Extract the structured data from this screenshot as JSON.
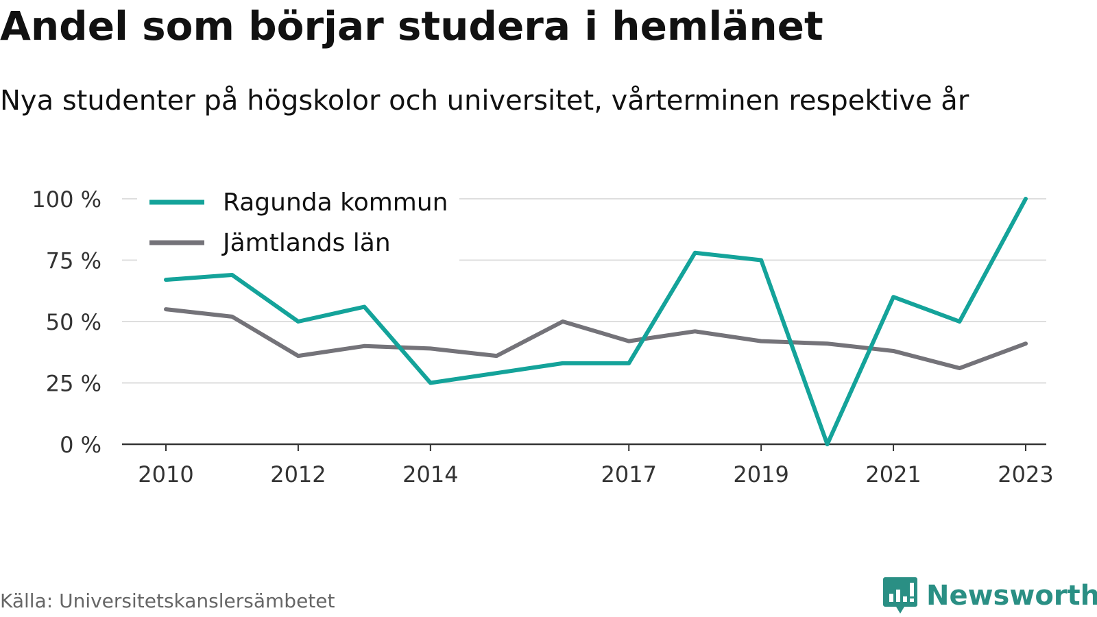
{
  "header": {
    "title": "Andel som börjar studera i hemlänet",
    "subtitle": "Nya studenter på högskolor och universitet, vårterminen respektive år"
  },
  "footer": {
    "source": "Källa: Universitetskanslersämbetet",
    "brand": "Newsworthy",
    "brand_icon": "newsworthy-logo-icon"
  },
  "chart_data": {
    "type": "line",
    "x": [
      2010,
      2011,
      2012,
      2013,
      2014,
      2015,
      2016,
      2017,
      2018,
      2019,
      2020,
      2021,
      2022,
      2023
    ],
    "x_tick_labels": [
      "2010",
      "2012",
      "2014",
      "2017",
      "2019",
      "2021",
      "2023"
    ],
    "y_tick_values": [
      0,
      25,
      50,
      75,
      100
    ],
    "y_tick_labels": [
      "0 %",
      "25 %",
      "50 %",
      "75 %",
      "100 %"
    ],
    "ylim": [
      0,
      100
    ],
    "grid": true,
    "legend_position": "top-left",
    "series": [
      {
        "name": "Ragunda kommun",
        "color": "#14a39a",
        "values": [
          67,
          69,
          50,
          56,
          25,
          29,
          33,
          33,
          78,
          75,
          0,
          60,
          50,
          100
        ]
      },
      {
        "name": "Jämtlands län",
        "color": "#747379",
        "values": [
          55,
          52,
          36,
          40,
          39,
          36,
          50,
          42,
          46,
          42,
          41,
          38,
          31,
          41
        ]
      }
    ]
  }
}
